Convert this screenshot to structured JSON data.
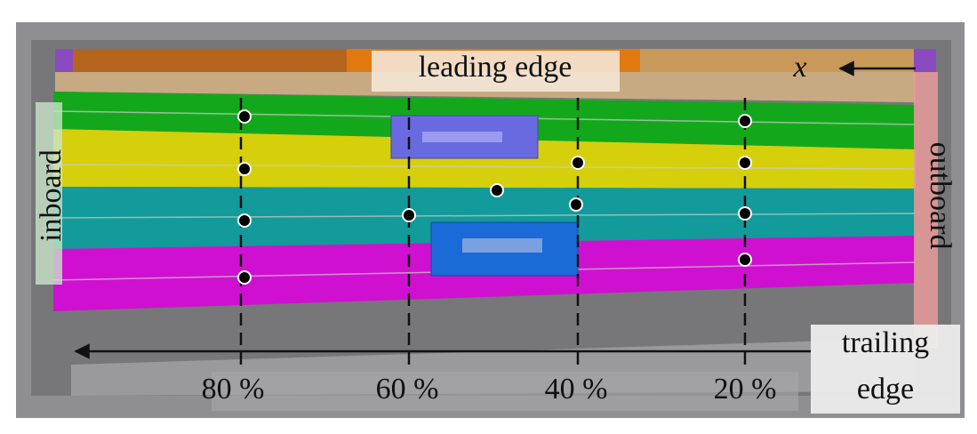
{
  "labels": {
    "leading_edge": "leading edge",
    "x_axis": "x",
    "inboard": "inboard",
    "outboard": "outboard",
    "trailing_edge": [
      "trailing",
      "edge"
    ]
  },
  "positions": [
    "80 %",
    "60 %",
    "40 %",
    "20 %"
  ]
}
